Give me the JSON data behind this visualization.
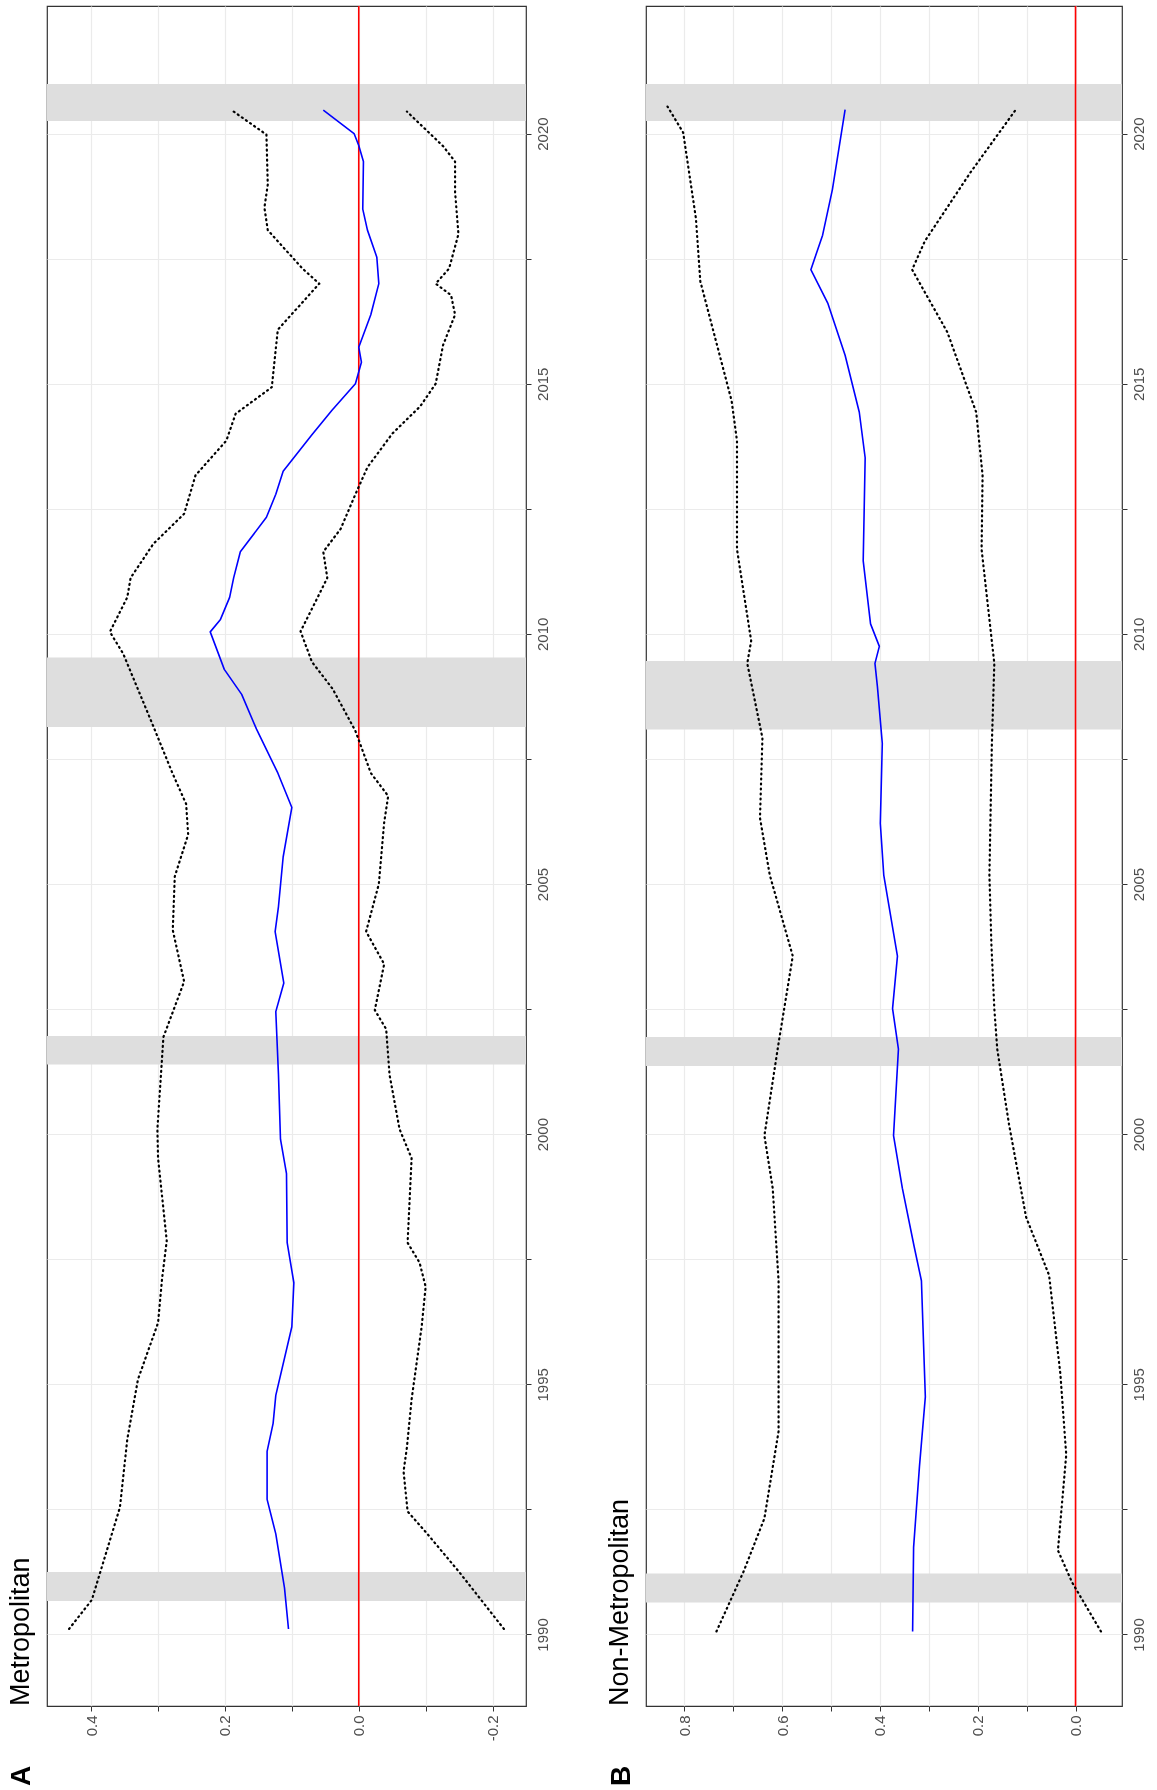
{
  "chart_data": [
    {
      "type": "line",
      "title": "Metropolitan",
      "annotations": [
        "A"
      ],
      "ylim": [
        1988.57,
        2022.55
      ],
      "yticks": [
        1990,
        {
          "value": 1992.5,
          "label": null
        },
        1995,
        {
          "value": 1997.5,
          "label": null
        },
        2000,
        {
          "value": 2002.5,
          "label": null
        },
        2005,
        {
          "value": 2007.5,
          "label": null
        },
        2010,
        {
          "value": 2012.5,
          "label": null
        },
        2015,
        {
          "value": 2017.5,
          "label": null
        },
        2020
      ],
      "xlim": [
        0.466,
        -0.25
      ],
      "xticks": [
        -0.2,
        {
          "value": -0.1,
          "label": null
        },
        {
          "value": 0,
          "label": "0.0"
        },
        {
          "value": 0.1,
          "label": null
        },
        0.2,
        {
          "value": 0.3,
          "label": null
        },
        0.4
      ],
      "grid": true,
      "series": [
        {
          "color": "#000000",
          "line_style": "dotted",
          "values": [
            1990.11,
            1990.69,
            1992.54,
            1993.9,
            1995.1,
            1996.23,
            1997.11,
            1997.87,
            1999.52,
            2000.1,
            2001.94,
            2003.05,
            2004.08,
            2005.15,
            2005.99,
            2006.6,
            2007.2,
            2008.15,
            2009.6,
            2010.04,
            2010.73,
            2011.12,
            2011.8,
            2012.4,
            2013.17,
            2013.86,
            2014.4,
            2014.93,
            2016.08,
            2017.0,
            2017.3,
            2018.07,
            2018.52,
            2018.98,
            2019.98,
            2020.44
          ],
          "x": [
            0.433,
            0.399,
            0.357,
            0.346,
            0.33,
            0.3,
            0.294,
            0.287,
            0.3,
            0.301,
            0.292,
            0.261,
            0.278,
            0.275,
            0.255,
            0.258,
            0.278,
            0.307,
            0.352,
            0.372,
            0.346,
            0.341,
            0.307,
            0.261,
            0.244,
            0.198,
            0.184,
            0.13,
            0.121,
            0.059,
            0.084,
            0.136,
            0.141,
            0.136,
            0.138,
            0.187
          ]
        },
        {
          "color": "#0000ff",
          "line_style": "solid",
          "values": [
            1990.11,
            1990.93,
            1992.01,
            1992.7,
            1993.66,
            1994.22,
            1994.78,
            1996.15,
            1997.03,
            1997.83,
            1999.21,
            1999.9,
            2001.19,
            2002.45,
            2003.02,
            2004.05,
            2004.55,
            2005.54,
            2006.53,
            2007.22,
            2008.1,
            2008.79,
            2009.29,
            2010.04,
            2010.28,
            2010.73,
            2011.12,
            2011.64,
            2012.33,
            2012.79,
            2013.25,
            2013.98,
            2014.47,
            2015.0,
            2015.43,
            2015.73,
            2016.38,
            2017.0,
            2017.53,
            2018.07,
            2018.49,
            2019.44,
            2019.76,
            2020.0,
            2020.47
          ],
          "x": [
            0.105,
            0.111,
            0.124,
            0.137,
            0.137,
            0.128,
            0.124,
            0.1,
            0.097,
            0.107,
            0.108,
            0.117,
            0.12,
            0.124,
            0.112,
            0.125,
            0.12,
            0.113,
            0.1,
            0.121,
            0.153,
            0.175,
            0.201,
            0.222,
            0.207,
            0.193,
            0.187,
            0.177,
            0.138,
            0.124,
            0.113,
            0.07,
            0.04,
            0.005,
            -0.004,
            0.0,
            -0.018,
            -0.03,
            -0.027,
            -0.013,
            -0.006,
            -0.007,
            0.0,
            0.007,
            0.053
          ]
        },
        {
          "color": "#000000",
          "line_style": "dotted",
          "values": [
            1990.11,
            1991.25,
            1992.05,
            1992.46,
            1993.26,
            1993.74,
            1994.7,
            1996.15,
            1996.95,
            1997.43,
            1997.83,
            1999.52,
            2000.1,
            2001.19,
            2002.1,
            2002.48,
            2003.4,
            2004.05,
            2005.0,
            2006.23,
            2006.76,
            2007.22,
            2008.06,
            2008.9,
            2009.44,
            2010.05,
            2010.58,
            2011.12,
            2011.64,
            2012.1,
            2012.79,
            2013.33,
            2014.0,
            2014.55,
            2015.0,
            2015.77,
            2016.38,
            2016.77,
            2017.0,
            2017.3,
            2017.99,
            2018.83,
            2019.44,
            2019.75,
            2020.44
          ],
          "x": [
            -0.217,
            -0.15,
            -0.1,
            -0.073,
            -0.067,
            -0.072,
            -0.079,
            -0.094,
            -0.1,
            -0.091,
            -0.073,
            -0.079,
            -0.061,
            -0.046,
            -0.041,
            -0.024,
            -0.038,
            -0.011,
            -0.03,
            -0.038,
            -0.044,
            -0.018,
            0.005,
            0.039,
            0.07,
            0.087,
            0.067,
            0.047,
            0.053,
            0.027,
            0.005,
            -0.013,
            -0.05,
            -0.092,
            -0.115,
            -0.126,
            -0.144,
            -0.138,
            -0.115,
            -0.135,
            -0.149,
            -0.144,
            -0.144,
            -0.126,
            -0.072
          ]
        }
      ],
      "ref_lines": [
        {
          "axis": "x",
          "value": 0,
          "color": "#ff0000"
        }
      ],
      "bands": [
        {
          "axis": "y",
          "from": 1990.67,
          "to": 1991.25,
          "color": "#dedede"
        },
        {
          "axis": "y",
          "from": 2001.39,
          "to": 2001.96,
          "color": "#dedede"
        },
        {
          "axis": "y",
          "from": 2008.14,
          "to": 2009.53,
          "color": "#dedede"
        },
        {
          "axis": "y",
          "from": 2020.25,
          "to": 2020.99,
          "color": "#dedede"
        }
      ]
    },
    {
      "type": "line",
      "title": "Non-Metropolitan",
      "annotations": [
        "B"
      ],
      "ylim": [
        1988.57,
        2022.55
      ],
      "yticks": [
        1990,
        {
          "value": 1992.5,
          "label": null
        },
        1995,
        {
          "value": 1997.5,
          "label": null
        },
        2000,
        {
          "value": 2002.5,
          "label": null
        },
        2005,
        {
          "value": 2007.5,
          "label": null
        },
        2010,
        {
          "value": 2012.5,
          "label": null
        },
        2015,
        {
          "value": 2017.5,
          "label": null
        },
        2020
      ],
      "xlim": [
        0.878,
        -0.095
      ],
      "xticks": [
        {
          "value": 0,
          "label": "0.0"
        },
        {
          "value": 0.1,
          "label": null
        },
        0.2,
        {
          "value": 0.3,
          "label": null
        },
        0.4,
        {
          "value": 0.5,
          "label": null
        },
        0.6,
        {
          "value": 0.7,
          "label": null
        },
        0.8
      ],
      "grid": true,
      "series": [
        {
          "color": "#000000",
          "line_style": "dotted",
          "values": [
            1990.06,
            1991.27,
            1992.32,
            1994.06,
            1997.07,
            1998.92,
            1999.97,
            2001.82,
            2003.56,
            2005.18,
            2006.32,
            2007.92,
            2009.41,
            2009.86,
            2011.69,
            2013.86,
            2014.66,
            2017.05,
            2018.31,
            2020.02,
            2020.54
          ],
          "x": [
            0.734,
            0.678,
            0.636,
            0.607,
            0.607,
            0.619,
            0.636,
            0.607,
            0.578,
            0.625,
            0.645,
            0.64,
            0.671,
            0.663,
            0.692,
            0.692,
            0.703,
            0.767,
            0.776,
            0.802,
            0.834
          ]
        },
        {
          "color": "#0000ff",
          "line_style": "solid",
          "values": [
            1990.06,
            1991.74,
            1993.36,
            1994.75,
            1997.07,
            1997.76,
            1998.92,
            1999.97,
            2001.7,
            2002.51,
            2003.56,
            2005.18,
            2006.21,
            2007.81,
            2008.95,
            2009.41,
            2009.75,
            2010.2,
            2011.46,
            2013.52,
            2014.43,
            2015.57,
            2016.6,
            2017.28,
            2017.97,
            2018.88,
            2020.48
          ],
          "x": [
            0.333,
            0.331,
            0.319,
            0.307,
            0.315,
            0.33,
            0.354,
            0.372,
            0.362,
            0.374,
            0.364,
            0.392,
            0.399,
            0.395,
            0.405,
            0.41,
            0.401,
            0.419,
            0.434,
            0.43,
            0.442,
            0.471,
            0.506,
            0.541,
            0.517,
            0.497,
            0.471
          ]
        },
        {
          "color": "#000000",
          "line_style": "dotted",
          "values": [
            1990.06,
            1991.04,
            1991.68,
            1993.59,
            1995.21,
            1997.18,
            1998.34,
            2000.2,
            2001.7,
            2002.51,
            2003.8,
            2005.18,
            2007.81,
            2009.41,
            2011.69,
            2013.17,
            2014.43,
            2016.03,
            2017.28,
            2017.85,
            2019.22,
            2020.48
          ],
          "x": [
            -0.052,
            0.007,
            0.036,
            0.019,
            0.031,
            0.054,
            0.101,
            0.136,
            0.16,
            0.166,
            0.172,
            0.176,
            0.171,
            0.166,
            0.192,
            0.19,
            0.203,
            0.262,
            0.334,
            0.308,
            0.215,
            0.122
          ]
        }
      ],
      "ref_lines": [
        {
          "axis": "x",
          "value": 0,
          "color": "#ff0000"
        }
      ],
      "bands": [
        {
          "axis": "y",
          "from": 1990.64,
          "to": 1991.22,
          "color": "#dedede"
        },
        {
          "axis": "y",
          "from": 2001.36,
          "to": 2001.94,
          "color": "#dedede"
        },
        {
          "axis": "y",
          "from": 2008.09,
          "to": 2009.46,
          "color": "#dedede"
        },
        {
          "axis": "y",
          "from": 2020.25,
          "to": 2020.99,
          "color": "#dedede"
        }
      ]
    }
  ]
}
